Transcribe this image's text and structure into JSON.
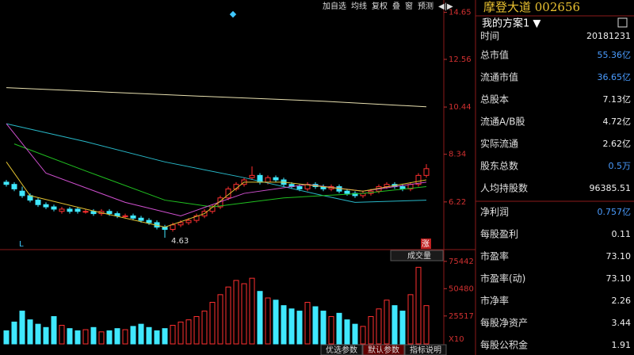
{
  "toolbar": [
    "加自选",
    "均线",
    "复权",
    "叠",
    "窗",
    "预测",
    "◀|▶"
  ],
  "chart_data": {
    "type": "candlestick",
    "open": [
      7.1,
      7.0,
      6.7,
      6.5,
      6.3,
      6.1,
      6.0,
      5.8,
      5.9,
      5.9,
      5.8,
      5.8,
      5.7,
      5.8,
      5.7,
      5.6,
      5.6,
      5.5,
      5.4,
      5.3,
      5.1,
      5.0,
      5.2,
      5.3,
      5.4,
      5.6,
      5.8,
      6.0,
      6.4,
      6.8,
      7.0,
      7.3,
      7.4,
      7.1,
      7.3,
      7.2,
      7.0,
      6.9,
      6.8,
      7.0,
      6.9,
      6.8,
      6.9,
      6.7,
      6.6,
      6.5,
      6.6,
      6.7,
      6.9,
      7.0,
      6.9,
      6.8,
      7.0,
      7.4
    ],
    "close": [
      7.0,
      6.8,
      6.5,
      6.3,
      6.1,
      6.0,
      5.9,
      5.9,
      5.8,
      5.8,
      5.8,
      5.7,
      5.8,
      5.7,
      5.6,
      5.6,
      5.5,
      5.4,
      5.3,
      5.1,
      5.0,
      5.2,
      5.3,
      5.4,
      5.6,
      5.8,
      6.0,
      6.4,
      6.8,
      7.0,
      7.2,
      7.4,
      7.1,
      7.3,
      7.2,
      7.0,
      6.9,
      6.8,
      7.0,
      6.9,
      6.8,
      6.9,
      6.7,
      6.6,
      6.5,
      6.6,
      6.7,
      6.9,
      7.0,
      6.9,
      6.8,
      7.0,
      7.4,
      7.7
    ],
    "high": [
      7.2,
      7.1,
      6.9,
      6.6,
      6.4,
      6.2,
      6.1,
      6.0,
      6.0,
      6.0,
      5.9,
      5.9,
      5.9,
      5.9,
      5.8,
      5.7,
      5.7,
      5.6,
      5.5,
      5.4,
      5.2,
      5.3,
      5.4,
      5.5,
      5.7,
      5.9,
      6.1,
      6.5,
      6.9,
      7.1,
      7.3,
      7.8,
      7.5,
      7.4,
      7.4,
      7.3,
      7.1,
      7.0,
      7.1,
      7.1,
      7.0,
      7.0,
      7.0,
      6.8,
      6.7,
      6.7,
      6.8,
      7.0,
      7.1,
      7.1,
      7.0,
      7.1,
      7.5,
      7.9
    ],
    "low": [
      6.9,
      6.7,
      6.4,
      6.2,
      6.0,
      5.9,
      5.8,
      5.7,
      5.7,
      5.7,
      5.7,
      5.6,
      5.6,
      5.6,
      5.5,
      5.5,
      5.4,
      5.3,
      5.2,
      5.0,
      4.63,
      4.9,
      5.1,
      5.2,
      5.3,
      5.5,
      5.7,
      5.9,
      6.3,
      6.7,
      6.9,
      7.2,
      7.0,
      7.0,
      7.1,
      6.9,
      6.8,
      6.7,
      6.7,
      6.8,
      6.7,
      6.7,
      6.6,
      6.5,
      6.4,
      6.4,
      6.5,
      6.6,
      6.8,
      6.8,
      6.7,
      6.7,
      6.9,
      7.3
    ],
    "up_color": "#ff3030",
    "down_color": "#40e8ff",
    "low_label": "4.63",
    "low_index": 20,
    "ma_lines": [
      {
        "color": "#e8e0b0",
        "x": [
          0,
          13,
          26,
          40,
          53
        ],
        "values": [
          11.3,
          11.1,
          10.9,
          10.7,
          10.45
        ]
      },
      {
        "color": "#28b8c8",
        "x": [
          0,
          10,
          20,
          30,
          40,
          44,
          53
        ],
        "values": [
          9.7,
          8.9,
          8.0,
          7.3,
          6.5,
          6.2,
          6.3
        ]
      },
      {
        "color": "#20c020",
        "x": [
          1,
          10,
          20,
          26,
          35,
          45,
          53
        ],
        "values": [
          8.8,
          7.6,
          6.3,
          6.0,
          6.4,
          6.6,
          6.9
        ]
      },
      {
        "color": "#d050d0",
        "x": [
          0,
          5,
          15,
          22,
          30,
          38,
          45,
          53
        ],
        "values": [
          9.7,
          7.5,
          6.2,
          5.6,
          6.6,
          7.0,
          6.7,
          7.1
        ]
      },
      {
        "color": "#e0c030",
        "x": [
          0,
          3,
          10,
          20,
          25,
          30,
          35,
          45,
          53
        ],
        "values": [
          8.0,
          6.5,
          5.9,
          5.1,
          5.7,
          7.1,
          7.1,
          6.7,
          7.2
        ]
      }
    ],
    "ylim": [
      4.1,
      15.2
    ],
    "yticks": [
      14.65,
      12.56,
      10.44,
      8.34,
      6.22
    ],
    "marker_left": "L",
    "marker_right": "涨",
    "volume_title": "成交量",
    "volume": [
      12000,
      20000,
      30000,
      22000,
      18000,
      15000,
      25000,
      17000,
      14000,
      12000,
      13000,
      15000,
      11000,
      12000,
      14000,
      13000,
      16000,
      18000,
      15000,
      12000,
      14000,
      17000,
      20000,
      22000,
      25000,
      30000,
      38000,
      45000,
      52000,
      58000,
      55000,
      60000,
      48000,
      42000,
      40000,
      35000,
      32000,
      30000,
      38000,
      34000,
      30000,
      25000,
      28000,
      22000,
      18000,
      16000,
      25000,
      32000,
      40000,
      35000,
      30000,
      45000,
      70000,
      35000
    ],
    "vlim": [
      0,
      84000
    ],
    "vticks": [
      75442,
      50480,
      25517
    ],
    "volume_unit": "X10"
  },
  "tabs": [
    "优选参数",
    "默认参数",
    "指标说明"
  ],
  "panel": {
    "title": "摩登大道 002656",
    "scheme": "我的方案1 ▼",
    "rows": [
      [
        "时间",
        "20181231"
      ],
      [
        "总市值",
        "55.36亿"
      ],
      [
        "流通市值",
        "36.65亿"
      ],
      [
        "总股本",
        "7.13亿"
      ],
      [
        "流通A/B股",
        "4.72亿"
      ],
      [
        "实际流通",
        "2.62亿"
      ],
      [
        "股东总数",
        "0.5万"
      ],
      [
        "人均持股数",
        "96385.51"
      ],
      [
        "净利润",
        "0.757亿"
      ],
      [
        "每股盈利",
        "0.11"
      ],
      [
        "市盈率",
        "73.10"
      ],
      [
        "市盈率(动)",
        "73.10"
      ],
      [
        "市净率",
        "2.26"
      ],
      [
        "每股净资产",
        "3.44"
      ],
      [
        "每股公积金",
        "1.91"
      ]
    ],
    "highlight_color": "#4a9cff",
    "highlight_rows": [
      1,
      2,
      6,
      8
    ]
  }
}
